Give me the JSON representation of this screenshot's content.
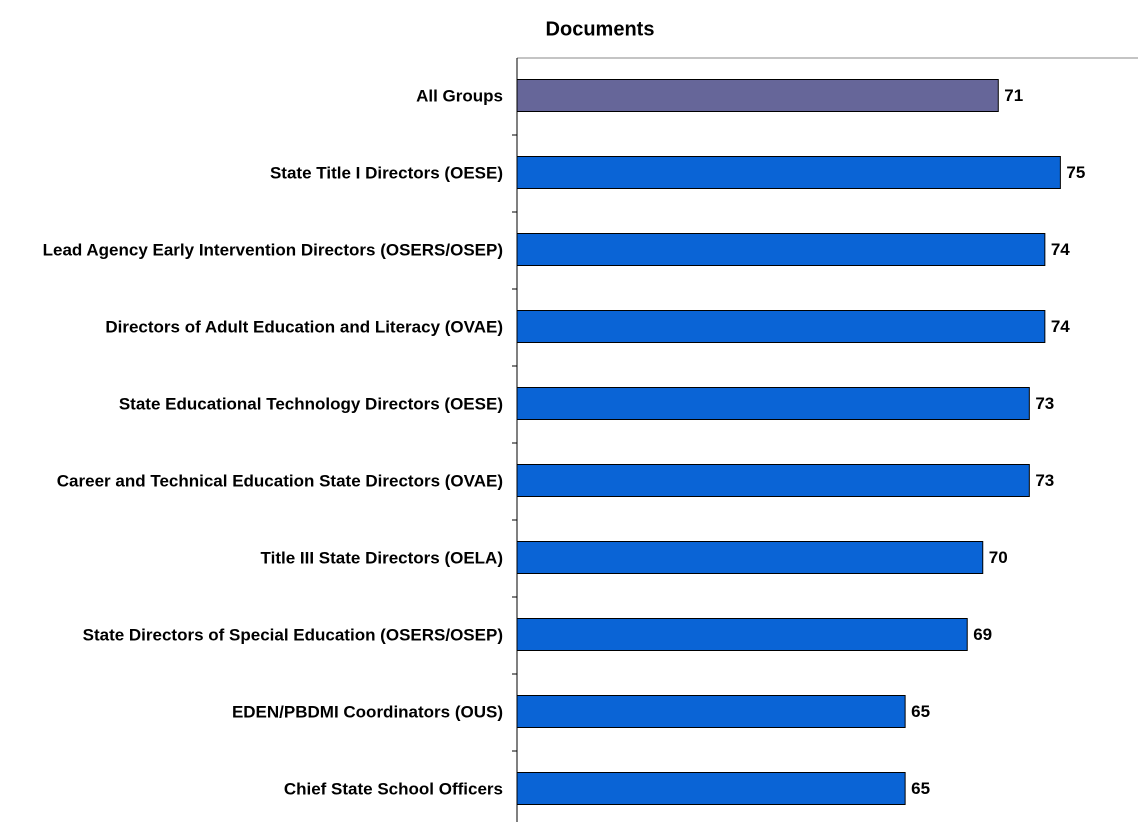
{
  "chart_data": {
    "type": "hbar",
    "title": "Documents",
    "categories": [
      "All Groups",
      "State Title I Directors (OESE)",
      "Lead Agency Early Intervention Directors (OSERS/OSEP)",
      "Directors of Adult Education and Literacy (OVAE)",
      "State Educational Technology Directors (OESE)",
      "Career and Technical Education State Directors (OVAE)",
      "Title III State Directors (OELA)",
      "State Directors of Special Education (OSERS/OSEP)",
      "EDEN/PBDMI Coordinators (OUS)",
      "Chief State School Officers"
    ],
    "values": [
      71,
      75,
      74,
      74,
      73,
      73,
      70,
      69,
      65,
      65
    ],
    "colors": [
      "#666699",
      "#0a64d6",
      "#0a64d6",
      "#0a64d6",
      "#0a64d6",
      "#0a64d6",
      "#0a64d6",
      "#0a64d6",
      "#0a64d6",
      "#0a64d6"
    ],
    "xlim": [
      40,
      80
    ]
  }
}
